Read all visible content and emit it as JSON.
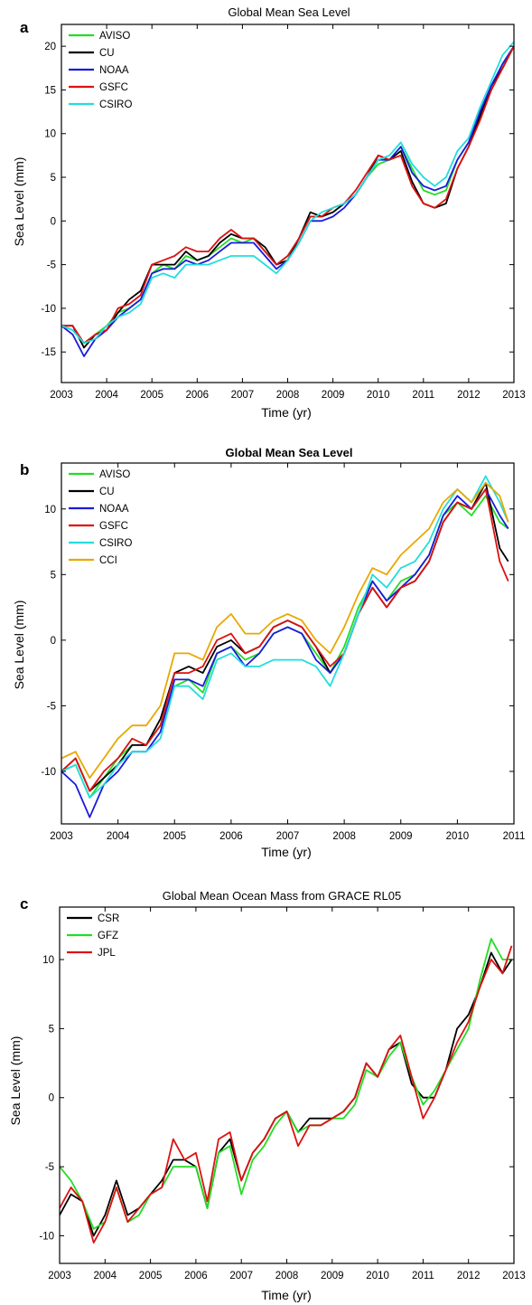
{
  "chart_data": [
    {
      "panel": "a",
      "type": "line",
      "title": "Global Mean Sea Level",
      "title_bold": false,
      "xlabel": "Time (yr)",
      "ylabel": "Sea Level (mm)",
      "xlim": [
        2003,
        2013
      ],
      "ylim": [
        -18.5,
        22.5
      ],
      "xticks": [
        2003,
        2004,
        2005,
        2006,
        2007,
        2008,
        2009,
        2010,
        2011,
        2012,
        2013
      ],
      "xtick_labels": [
        "2003",
        "2004",
        "2005",
        "2006",
        "2007",
        "2008",
        "2009",
        "2010",
        "2011",
        "2012",
        "2013"
      ],
      "yticks": [
        -15,
        -10,
        -5,
        0,
        5,
        10,
        15,
        20
      ],
      "ytick_labels": [
        "-15",
        "-10",
        "-5",
        "0",
        "5",
        "10",
        "15",
        "20"
      ],
      "grid": false,
      "legend_position": "top-left",
      "x": [
        2003.0,
        2003.25,
        2003.5,
        2003.75,
        2004.0,
        2004.25,
        2004.5,
        2004.75,
        2005.0,
        2005.25,
        2005.5,
        2005.75,
        2006.0,
        2006.25,
        2006.5,
        2006.75,
        2007.0,
        2007.25,
        2007.5,
        2007.75,
        2008.0,
        2008.25,
        2008.5,
        2008.75,
        2009.0,
        2009.25,
        2009.5,
        2009.75,
        2010.0,
        2010.25,
        2010.5,
        2010.75,
        2011.0,
        2011.25,
        2011.5,
        2011.75,
        2012.0,
        2012.25,
        2012.5,
        2012.75,
        2013.0
      ],
      "series": [
        {
          "name": "AVISO",
          "color": "#22dd22",
          "values": [
            -12,
            -12.5,
            -14,
            -13,
            -12,
            -10.5,
            -10,
            -9,
            -6,
            -5,
            -5.5,
            -4,
            -4.5,
            -4,
            -3,
            -2,
            -2.5,
            -2,
            -3.5,
            -5,
            -4,
            -2,
            0.5,
            0.5,
            1,
            2,
            3,
            5,
            6.5,
            7,
            8.5,
            6,
            3.5,
            3,
            3.5,
            7,
            9,
            12,
            15,
            18,
            20
          ]
        },
        {
          "name": "CU",
          "color": "#000000",
          "values": [
            -12,
            -12,
            -14.5,
            -13,
            -12.5,
            -10.5,
            -9,
            -8,
            -5,
            -5,
            -5,
            -3.5,
            -4.5,
            -4,
            -2.5,
            -1.5,
            -2,
            -2,
            -3,
            -5,
            -4.5,
            -2,
            1,
            0.5,
            1,
            2,
            3,
            5,
            7.5,
            7,
            8,
            4.5,
            2,
            1.5,
            2,
            6,
            8.5,
            12,
            15.5,
            17.5,
            20
          ]
        },
        {
          "name": "NOAA",
          "color": "#1a1adf",
          "values": [
            -12,
            -13,
            -15.5,
            -13.5,
            -12.5,
            -11,
            -10,
            -9,
            -6,
            -5.5,
            -5.5,
            -4.5,
            -5,
            -4.5,
            -3.5,
            -2.5,
            -2.5,
            -2.5,
            -4,
            -5.5,
            -4.5,
            -2.5,
            0,
            0,
            0.5,
            1.5,
            3,
            5,
            7,
            7,
            8.5,
            5.5,
            4,
            3.5,
            4,
            7,
            9,
            12.5,
            15.5,
            18,
            20
          ]
        },
        {
          "name": "GSFC",
          "color": "#dd1111",
          "values": [
            -12,
            -12,
            -14,
            -13,
            -12.5,
            -10,
            -9.5,
            -8.5,
            -5,
            -4.5,
            -4,
            -3,
            -3.5,
            -3.5,
            -2,
            -1,
            -2,
            -2,
            -3.5,
            -5,
            -4,
            -2,
            0.5,
            0.5,
            1.5,
            2,
            3.5,
            5.5,
            7.5,
            7,
            7.5,
            4,
            2,
            1.5,
            2.5,
            6,
            8.5,
            11.5,
            15,
            17.5,
            20
          ]
        },
        {
          "name": "CSIRO",
          "color": "#22dddd",
          "values": [
            -12,
            -12.5,
            -14,
            -13.5,
            -12,
            -11,
            -10.5,
            -9.5,
            -6.5,
            -6,
            -6.5,
            -5,
            -5,
            -5,
            -4.5,
            -4,
            -4,
            -4,
            -5,
            -6,
            -4.5,
            -2.5,
            0,
            1,
            1.5,
            2,
            3,
            5,
            7,
            7.5,
            9,
            6.5,
            5,
            4,
            5,
            8,
            9.5,
            13,
            16,
            19,
            20.5
          ]
        }
      ]
    },
    {
      "panel": "b",
      "type": "line",
      "title": "Global Mean Sea Level",
      "title_bold": true,
      "xlabel": "Time (yr)",
      "ylabel": "Sea Level (mm)",
      "xlim": [
        2003,
        2011
      ],
      "ylim": [
        -14,
        13.5
      ],
      "xticks": [
        2003,
        2004,
        2005,
        2006,
        2007,
        2008,
        2009,
        2010,
        2011
      ],
      "xtick_labels": [
        "2003",
        "2004",
        "2005",
        "2006",
        "2007",
        "2008",
        "2009",
        "2010",
        "2011"
      ],
      "yticks": [
        -10,
        -5,
        0,
        5,
        10
      ],
      "ytick_labels": [
        "-10",
        "-5",
        "0",
        "5",
        "10"
      ],
      "grid": false,
      "legend_position": "top-left",
      "x": [
        2003.0,
        2003.25,
        2003.5,
        2003.75,
        2004.0,
        2004.25,
        2004.5,
        2004.75,
        2005.0,
        2005.25,
        2005.5,
        2005.75,
        2006.0,
        2006.25,
        2006.5,
        2006.75,
        2007.0,
        2007.25,
        2007.5,
        2007.75,
        2008.0,
        2008.25,
        2008.5,
        2008.75,
        2009.0,
        2009.25,
        2009.5,
        2009.75,
        2010.0,
        2010.25,
        2010.5,
        2010.75,
        2010.9
      ],
      "series": [
        {
          "name": "AVISO",
          "color": "#22dd22",
          "values": [
            -10,
            -9.5,
            -12,
            -10.5,
            -9,
            -8,
            -8,
            -6.5,
            -3.5,
            -3,
            -4,
            -1,
            -0.5,
            -1.5,
            -1,
            0.5,
            1,
            0.5,
            -1,
            -2.5,
            -0.5,
            2.5,
            4.5,
            3,
            4.5,
            5,
            6.5,
            9.5,
            10.5,
            9.5,
            11,
            9,
            8.5
          ]
        },
        {
          "name": "CU",
          "color": "#000000",
          "values": [
            -10,
            -9,
            -11.5,
            -10.5,
            -9.5,
            -8,
            -8,
            -6,
            -2.5,
            -2,
            -2.5,
            -0.5,
            0,
            -1,
            -0.5,
            1,
            1.5,
            1,
            -0.5,
            -2.5,
            -1,
            2,
            4,
            2.5,
            4,
            4.5,
            6,
            9,
            10.5,
            10,
            12,
            7,
            6
          ]
        },
        {
          "name": "NOAA",
          "color": "#1a1adf",
          "values": [
            -10,
            -11,
            -13.5,
            -11,
            -10,
            -8.5,
            -8.5,
            -7,
            -3,
            -3,
            -3.5,
            -1,
            -0.5,
            -2,
            -1,
            0.5,
            1,
            0.5,
            -1.5,
            -2.5,
            -1,
            2,
            4.5,
            3,
            4,
            5,
            6.5,
            9.5,
            11,
            10,
            11.5,
            9.5,
            8.5
          ]
        },
        {
          "name": "GSFC",
          "color": "#dd1111",
          "values": [
            -10,
            -9,
            -11.5,
            -10,
            -9,
            -7.5,
            -8,
            -6.5,
            -2.5,
            -2.5,
            -2,
            0,
            0.5,
            -1,
            -0.5,
            1,
            1.5,
            1,
            -0.5,
            -2,
            -1,
            2,
            4,
            2.5,
            4,
            4.5,
            6,
            9,
            10.5,
            10,
            11.5,
            6,
            4.5
          ]
        },
        {
          "name": "CSIRO",
          "color": "#22dddd",
          "values": [
            -10,
            -9.5,
            -12,
            -11,
            -9.5,
            -8.5,
            -8.5,
            -7.5,
            -3.5,
            -3.5,
            -4.5,
            -1.5,
            -1,
            -2,
            -2,
            -1.5,
            -1.5,
            -1.5,
            -2,
            -3.5,
            -1,
            2,
            5,
            4,
            5.5,
            6,
            7.5,
            10,
            11.5,
            10.5,
            12.5,
            10.5,
            9
          ]
        },
        {
          "name": "CCI",
          "color": "#e8a800",
          "values": [
            -9,
            -8.5,
            -10.5,
            -9,
            -7.5,
            -6.5,
            -6.5,
            -5,
            -1,
            -1,
            -1.5,
            1,
            2,
            0.5,
            0.5,
            1.5,
            2,
            1.5,
            0,
            -1,
            1,
            3.5,
            5.5,
            5,
            6.5,
            7.5,
            8.5,
            10.5,
            11.5,
            10.5,
            12,
            11,
            9
          ]
        }
      ]
    },
    {
      "panel": "c",
      "type": "line",
      "title": "Global Mean Ocean Mass from GRACE RL05",
      "title_bold": false,
      "xlabel": "Time (yr)",
      "ylabel": "Sea Level (mm)",
      "xlim": [
        2003,
        2013
      ],
      "ylim": [
        -12,
        13.8
      ],
      "xticks": [
        2003,
        2004,
        2005,
        2006,
        2007,
        2008,
        2009,
        2010,
        2011,
        2012,
        2013
      ],
      "xtick_labels": [
        "2003",
        "2004",
        "2005",
        "2006",
        "2007",
        "2008",
        "2009",
        "2010",
        "2011",
        "2012",
        "2013"
      ],
      "yticks": [
        -10,
        -5,
        0,
        5,
        10
      ],
      "ytick_labels": [
        "-10",
        "-5",
        "0",
        "5",
        "10"
      ],
      "grid": false,
      "legend_position": "top-left",
      "x": [
        2003.0,
        2003.25,
        2003.5,
        2003.75,
        2004.0,
        2004.25,
        2004.5,
        2004.75,
        2005.0,
        2005.25,
        2005.5,
        2005.75,
        2006.0,
        2006.25,
        2006.5,
        2006.75,
        2007.0,
        2007.25,
        2007.5,
        2007.75,
        2008.0,
        2008.25,
        2008.5,
        2008.75,
        2009.0,
        2009.25,
        2009.5,
        2009.75,
        2010.0,
        2010.25,
        2010.5,
        2010.75,
        2011.0,
        2011.25,
        2011.5,
        2011.75,
        2012.0,
        2012.25,
        2012.5,
        2012.75,
        2012.95
      ],
      "series": [
        {
          "name": "CSR",
          "color": "#000000",
          "values": [
            -8.5,
            -7,
            -7.5,
            -10,
            -8.5,
            -6,
            -8.5,
            -8,
            -7,
            -6,
            -4.5,
            -4.5,
            -5,
            -8,
            -4,
            -3,
            -6,
            -4,
            -3,
            -1.5,
            -1,
            -2.5,
            -1.5,
            -1.5,
            -1.5,
            -1,
            0,
            2.5,
            1.5,
            3.5,
            4,
            1,
            0,
            0,
            2,
            5,
            6,
            8,
            10.5,
            9,
            10
          ]
        },
        {
          "name": "GFZ",
          "color": "#22dd22",
          "values": [
            -5,
            -6,
            -7.5,
            -9.5,
            -9,
            -6.5,
            -9,
            -8.5,
            -7,
            -6.5,
            -5,
            -5,
            -5,
            -8,
            -4,
            -3.5,
            -7,
            -4.5,
            -3.5,
            -2,
            -1,
            -2.5,
            -2,
            -2,
            -1.5,
            -1.5,
            -0.5,
            2,
            1.5,
            3,
            4,
            1.5,
            -0.5,
            0.5,
            2,
            3.5,
            5,
            8.5,
            11.5,
            10,
            10
          ]
        },
        {
          "name": "JPL",
          "color": "#dd1111",
          "values": [
            -8,
            -6.5,
            -7.5,
            -10.5,
            -9,
            -6.5,
            -9,
            -8,
            -7,
            -6.5,
            -3,
            -4.5,
            -4,
            -7.5,
            -3,
            -2.5,
            -6,
            -4,
            -3,
            -1.5,
            -1,
            -3.5,
            -2,
            -2,
            -1.5,
            -1,
            0,
            2.5,
            1.5,
            3.5,
            4.5,
            1.5,
            -1.5,
            0,
            2,
            4,
            5.5,
            8,
            10,
            9,
            11
          ]
        }
      ]
    }
  ],
  "panels": [
    {
      "letter": "a",
      "title": "Global Mean Sea Level",
      "xlabel": "Time (yr)",
      "ylabel": "Sea Level (mm)"
    },
    {
      "letter": "b",
      "title": "Global Mean Sea Level",
      "xlabel": "Time (yr)",
      "ylabel": "Sea Level (mm)"
    },
    {
      "letter": "c",
      "title": "Global Mean Ocean Mass from GRACE RL05",
      "xlabel": "Time (yr)",
      "ylabel": "Sea Level (mm)"
    }
  ]
}
